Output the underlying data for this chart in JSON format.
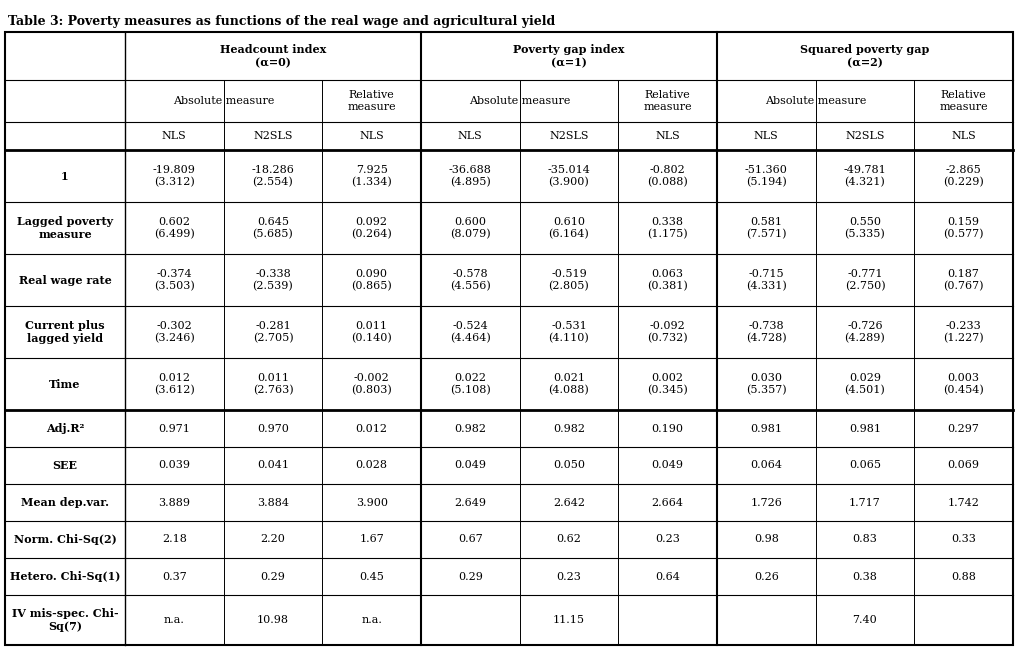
{
  "title": "Table 3: Poverty measures as functions of the real wage and agricultural yield",
  "col_groups": [
    {
      "label": "Headcount index\n(α=0)"
    },
    {
      "label": "Poverty gap index\n(α=1)"
    },
    {
      "label": "Squared poverty gap\n(α=2)"
    }
  ],
  "sub_groups": [
    "Absolute measure",
    "Relative\nmeasure",
    "Absolute measure",
    "Relative\nmeasure",
    "Absolute measure",
    "Relative\nmeasure"
  ],
  "method_row": [
    "NLS",
    "N2SLS",
    "NLS",
    "NLS",
    "N2SLS",
    "NLS",
    "NLS",
    "N2SLS",
    "NLS"
  ],
  "row_labels": [
    "1",
    "Lagged poverty\nmeasure",
    "Real wage rate",
    "Current plus\nlagged yield",
    "Time"
  ],
  "data_rows": [
    [
      "-19.809\n(3.312)",
      "-18.286\n(2.554)",
      "7.925\n(1.334)",
      "-36.688\n(4.895)",
      "-35.014\n(3.900)",
      "-0.802\n(0.088)",
      "-51.360\n(5.194)",
      "-49.781\n(4.321)",
      "-2.865\n(0.229)"
    ],
    [
      "0.602\n(6.499)",
      "0.645\n(5.685)",
      "0.092\n(0.264)",
      "0.600\n(8.079)",
      "0.610\n(6.164)",
      "0.338\n(1.175)",
      "0.581\n(7.571)",
      "0.550\n(5.335)",
      "0.159\n(0.577)"
    ],
    [
      "-0.374\n(3.503)",
      "-0.338\n(2.539)",
      "0.090\n(0.865)",
      "-0.578\n(4.556)",
      "-0.519\n(2.805)",
      "0.063\n(0.381)",
      "-0.715\n(4.331)",
      "-0.771\n(2.750)",
      "0.187\n(0.767)"
    ],
    [
      "-0.302\n(3.246)",
      "-0.281\n(2.705)",
      "0.011\n(0.140)",
      "-0.524\n(4.464)",
      "-0.531\n(4.110)",
      "-0.092\n(0.732)",
      "-0.738\n(4.728)",
      "-0.726\n(4.289)",
      "-0.233\n(1.227)"
    ],
    [
      "0.012\n(3.612)",
      "0.011\n(2.763)",
      "-0.002\n(0.803)",
      "0.022\n(5.108)",
      "0.021\n(4.088)",
      "0.002\n(0.345)",
      "0.030\n(5.357)",
      "0.029\n(4.501)",
      "0.003\n(0.454)"
    ]
  ],
  "stat_labels": [
    "Adj.R²",
    "SEE",
    "Mean dep.var.",
    "Norm. Chi-Sq(2)",
    "Hetero. Chi-Sq(1)",
    "IV mis-spec. Chi-\nSq(7)"
  ],
  "stat_rows": [
    [
      "0.971",
      "0.970",
      "0.012",
      "0.982",
      "0.982",
      "0.190",
      "0.981",
      "0.981",
      "0.297"
    ],
    [
      "0.039",
      "0.041",
      "0.028",
      "0.049",
      "0.050",
      "0.049",
      "0.064",
      "0.065",
      "0.069"
    ],
    [
      "3.889",
      "3.884",
      "3.900",
      "2.649",
      "2.642",
      "2.664",
      "1.726",
      "1.717",
      "1.742"
    ],
    [
      "2.18",
      "2.20",
      "1.67",
      "0.67",
      "0.62",
      "0.23",
      "0.98",
      "0.83",
      "0.33"
    ],
    [
      "0.37",
      "0.29",
      "0.45",
      "0.29",
      "0.23",
      "0.64",
      "0.26",
      "0.38",
      "0.88"
    ],
    [
      "n.a.",
      "10.98",
      "n.a.",
      "",
      "11.15",
      "",
      "",
      "7.40",
      ""
    ]
  ],
  "bg_color": "#ffffff",
  "text_color": "#000000",
  "title_fontsize": 9,
  "header_fontsize": 8,
  "data_fontsize": 8,
  "stat_fontsize": 8
}
